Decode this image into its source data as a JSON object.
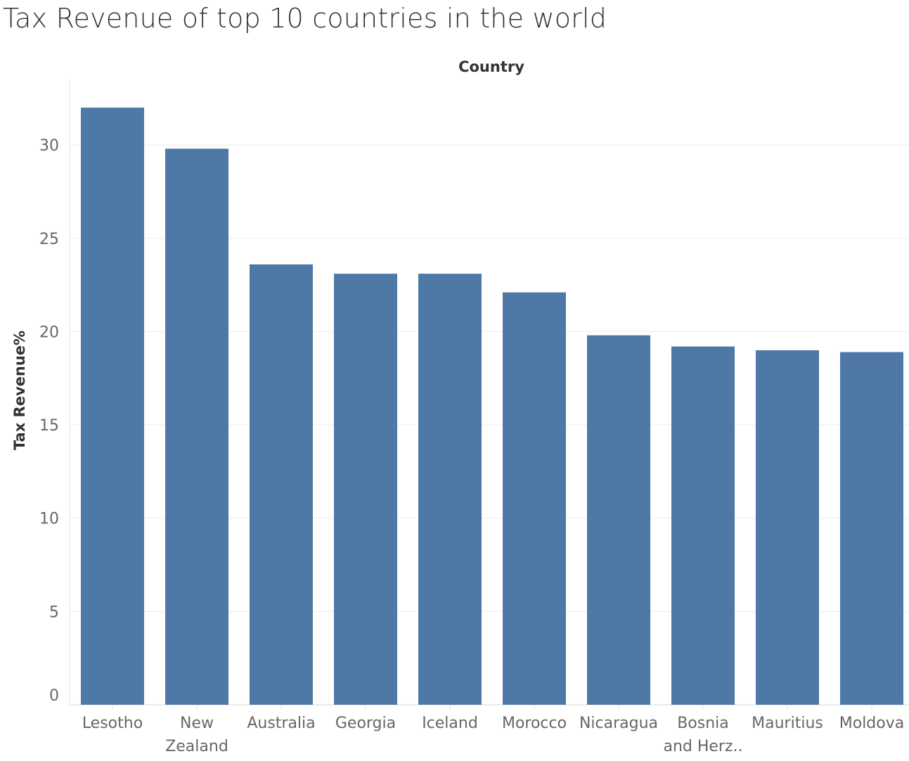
{
  "chart_data": {
    "type": "bar",
    "title": "Tax Revenue of top 10 countries in the world",
    "xlabel": "Country",
    "ylabel": "Tax Revenue%",
    "categories": [
      "Lesotho",
      "New Zealand",
      "Australia",
      "Georgia",
      "Iceland",
      "Morocco",
      "Nicaragua",
      "Bosnia and Herz..",
      "Mauritius",
      "Moldova"
    ],
    "category_label_lines": [
      [
        "Lesotho"
      ],
      [
        "New",
        "Zealand"
      ],
      [
        "Australia"
      ],
      [
        "Georgia"
      ],
      [
        "Iceland"
      ],
      [
        "Morocco"
      ],
      [
        "Nicaragua"
      ],
      [
        "Bosnia",
        "and Herz.."
      ],
      [
        "Mauritius"
      ],
      [
        "Moldova"
      ]
    ],
    "values": [
      32.0,
      29.8,
      23.6,
      23.1,
      23.1,
      22.1,
      19.8,
      19.2,
      19.0,
      18.9
    ],
    "ylim": [
      0,
      33
    ],
    "yticks": [
      0,
      5,
      10,
      15,
      20,
      25,
      30
    ],
    "grid": true,
    "bar_color": "#4e79a7"
  }
}
